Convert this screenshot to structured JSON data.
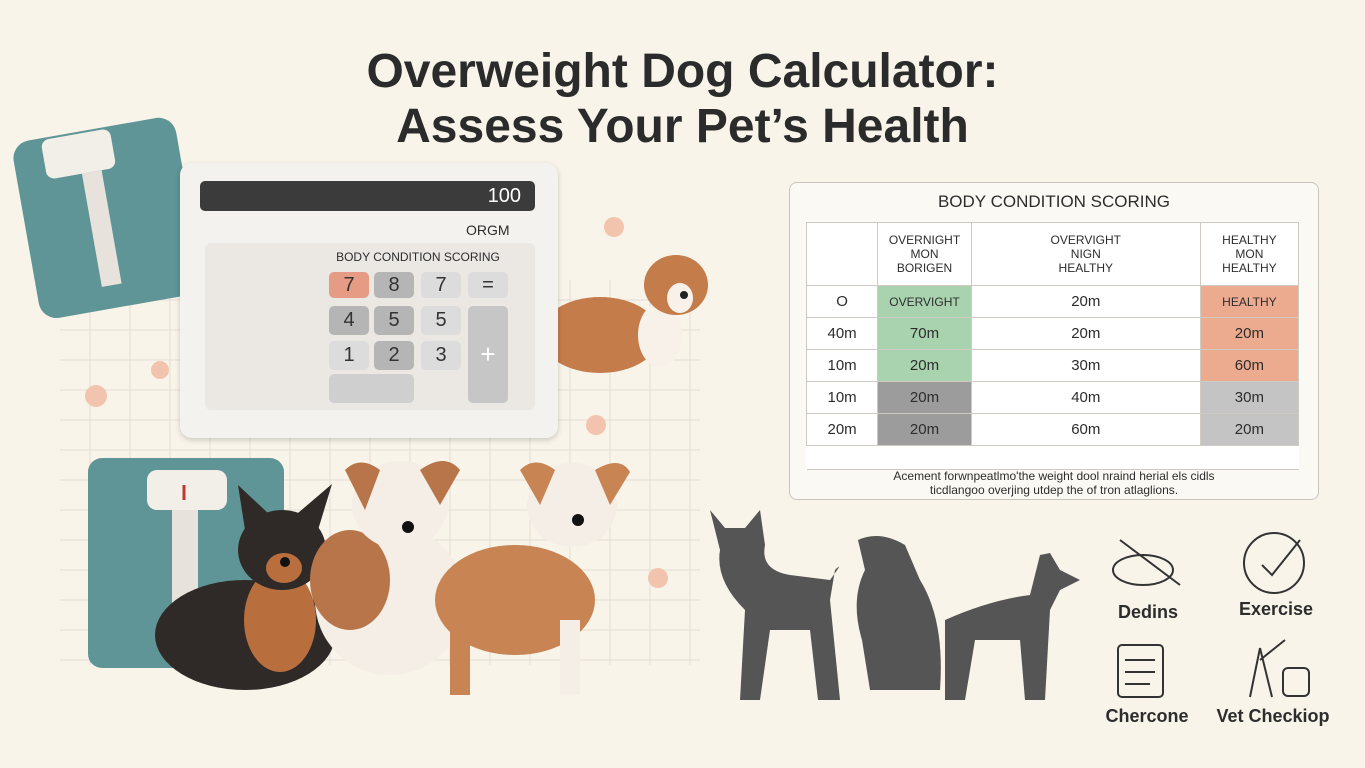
{
  "header": {
    "title_lines": [
      "Overweight Dog Calculator:",
      "Assess Your Pet’s Health"
    ]
  },
  "calculator": {
    "display": "100",
    "unit": "ORGM",
    "label": "BODY CONDITION SCORING",
    "keys": [
      "7",
      "8",
      "7",
      "=",
      "4",
      "5",
      "5",
      "1",
      "2",
      "3",
      "+"
    ]
  },
  "table": {
    "title": "BODY CONDITION SCORING",
    "headers": [
      "OVERNIGHT\nMON\nBORIGEN",
      "OVERVIGHT\nNIGN\nHEALTHY",
      "HEALTHY\nMON\nHEALTHY"
    ],
    "rows": [
      [
        "O",
        "OVERVIGHT",
        "20m",
        "HEALTHY"
      ],
      [
        "40m",
        "70m",
        "20m",
        "20m"
      ],
      [
        "10m",
        "20m",
        "30m",
        "60m"
      ],
      [
        "10m",
        "20m",
        "40m",
        "30m"
      ],
      [
        "20m",
        "20m",
        "60m",
        "20m"
      ]
    ],
    "footnote": [
      "Acement forwnpeatlmo'the weight dool nraind herial els cidls",
      "ticdlangoo overjing utdep the of tron atlaglions."
    ]
  },
  "icons": [
    {
      "label": "Dedins"
    },
    {
      "label": "Exercise"
    },
    {
      "label": "Chercone"
    },
    {
      "label": "Vet Checkiop"
    }
  ]
}
